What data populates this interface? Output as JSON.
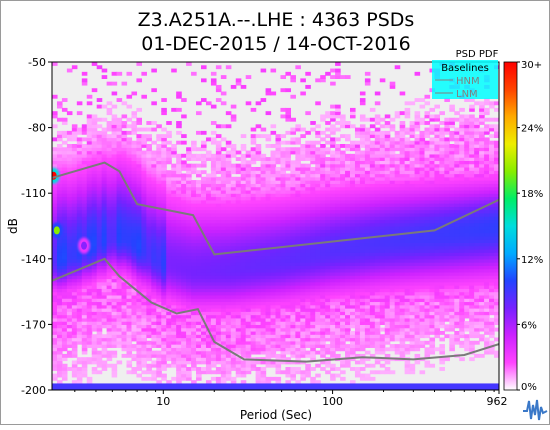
{
  "chart_data": {
    "type": "heatmap",
    "title_line1": "Z3.A251A.--.LHE : 4363 PSDs",
    "title_line2": "01-DEC-2015 / 14-OCT-2016",
    "xlabel": "Period (Sec)",
    "ylabel": "dB",
    "x_scale": "log",
    "xlim": [
      2.2,
      962
    ],
    "ylim": [
      -200,
      -50
    ],
    "x_ticks": [
      {
        "value": 10,
        "label": "10"
      },
      {
        "value": 100,
        "label": "100"
      },
      {
        "value": 962,
        "label": "962"
      }
    ],
    "y_ticks": [
      {
        "value": -50,
        "label": "-50"
      },
      {
        "value": -80,
        "label": "-80"
      },
      {
        "value": -110,
        "label": "-110"
      },
      {
        "value": -140,
        "label": "-140"
      },
      {
        "value": -170,
        "label": "-170"
      },
      {
        "value": -200,
        "label": "-200"
      }
    ],
    "colorbar": {
      "title": "PSD PDF",
      "range": [
        0,
        30
      ],
      "tick_labels": [
        "30+",
        "24%",
        "18%",
        "12%",
        "6%",
        "0%"
      ],
      "tick_values": [
        30,
        24,
        18,
        12,
        6,
        0
      ],
      "colors": [
        "#ffffff",
        "#ff44ff",
        "#cc22ff",
        "#7722ff",
        "#2244ff",
        "#00aaff",
        "#00dddd",
        "#00ee66",
        "#88ee00",
        "#eeee00",
        "#ffaa00",
        "#ff4400",
        "#ff0000"
      ]
    },
    "legend": {
      "title": "Baselines",
      "entries": [
        "HNM",
        "LNM"
      ],
      "placement": "top-right"
    },
    "series": [
      {
        "name": "HNM",
        "x": [
          2.2,
          4.5,
          5.5,
          7.0,
          15.0,
          20.0,
          400.0,
          962.0
        ],
        "y": [
          -103,
          -96,
          -100,
          -115,
          -120,
          -138,
          -127,
          -113
        ]
      },
      {
        "name": "LNM",
        "x": [
          2.2,
          4.5,
          5.5,
          8.5,
          12.0,
          16.0,
          20.0,
          30.0,
          70.0,
          150.0,
          300.0,
          600.0,
          962.0
        ],
        "y": [
          -150,
          -140,
          -148,
          -160,
          -165,
          -163,
          -178,
          -186,
          -187,
          -185,
          -186,
          -184,
          -179
        ]
      }
    ],
    "density": {
      "median_x": [
        2.2,
        3.0,
        4.0,
        5.0,
        6.0,
        8.0,
        10.0,
        15.0,
        25.0,
        50.0,
        100.0,
        200.0,
        500.0,
        962.0
      ],
      "median_y": [
        -141,
        -138,
        -133,
        -130,
        -130,
        -137,
        -142,
        -146,
        -145,
        -141,
        -136,
        -132,
        -128,
        -125
      ],
      "hot_spots": [
        {
          "x": 2.25,
          "y": -102,
          "level": 30
        },
        {
          "x": 2.35,
          "y": -127,
          "level": 20
        },
        {
          "x": 3.4,
          "y": -134,
          "level": 7
        }
      ]
    },
    "grid": false
  }
}
